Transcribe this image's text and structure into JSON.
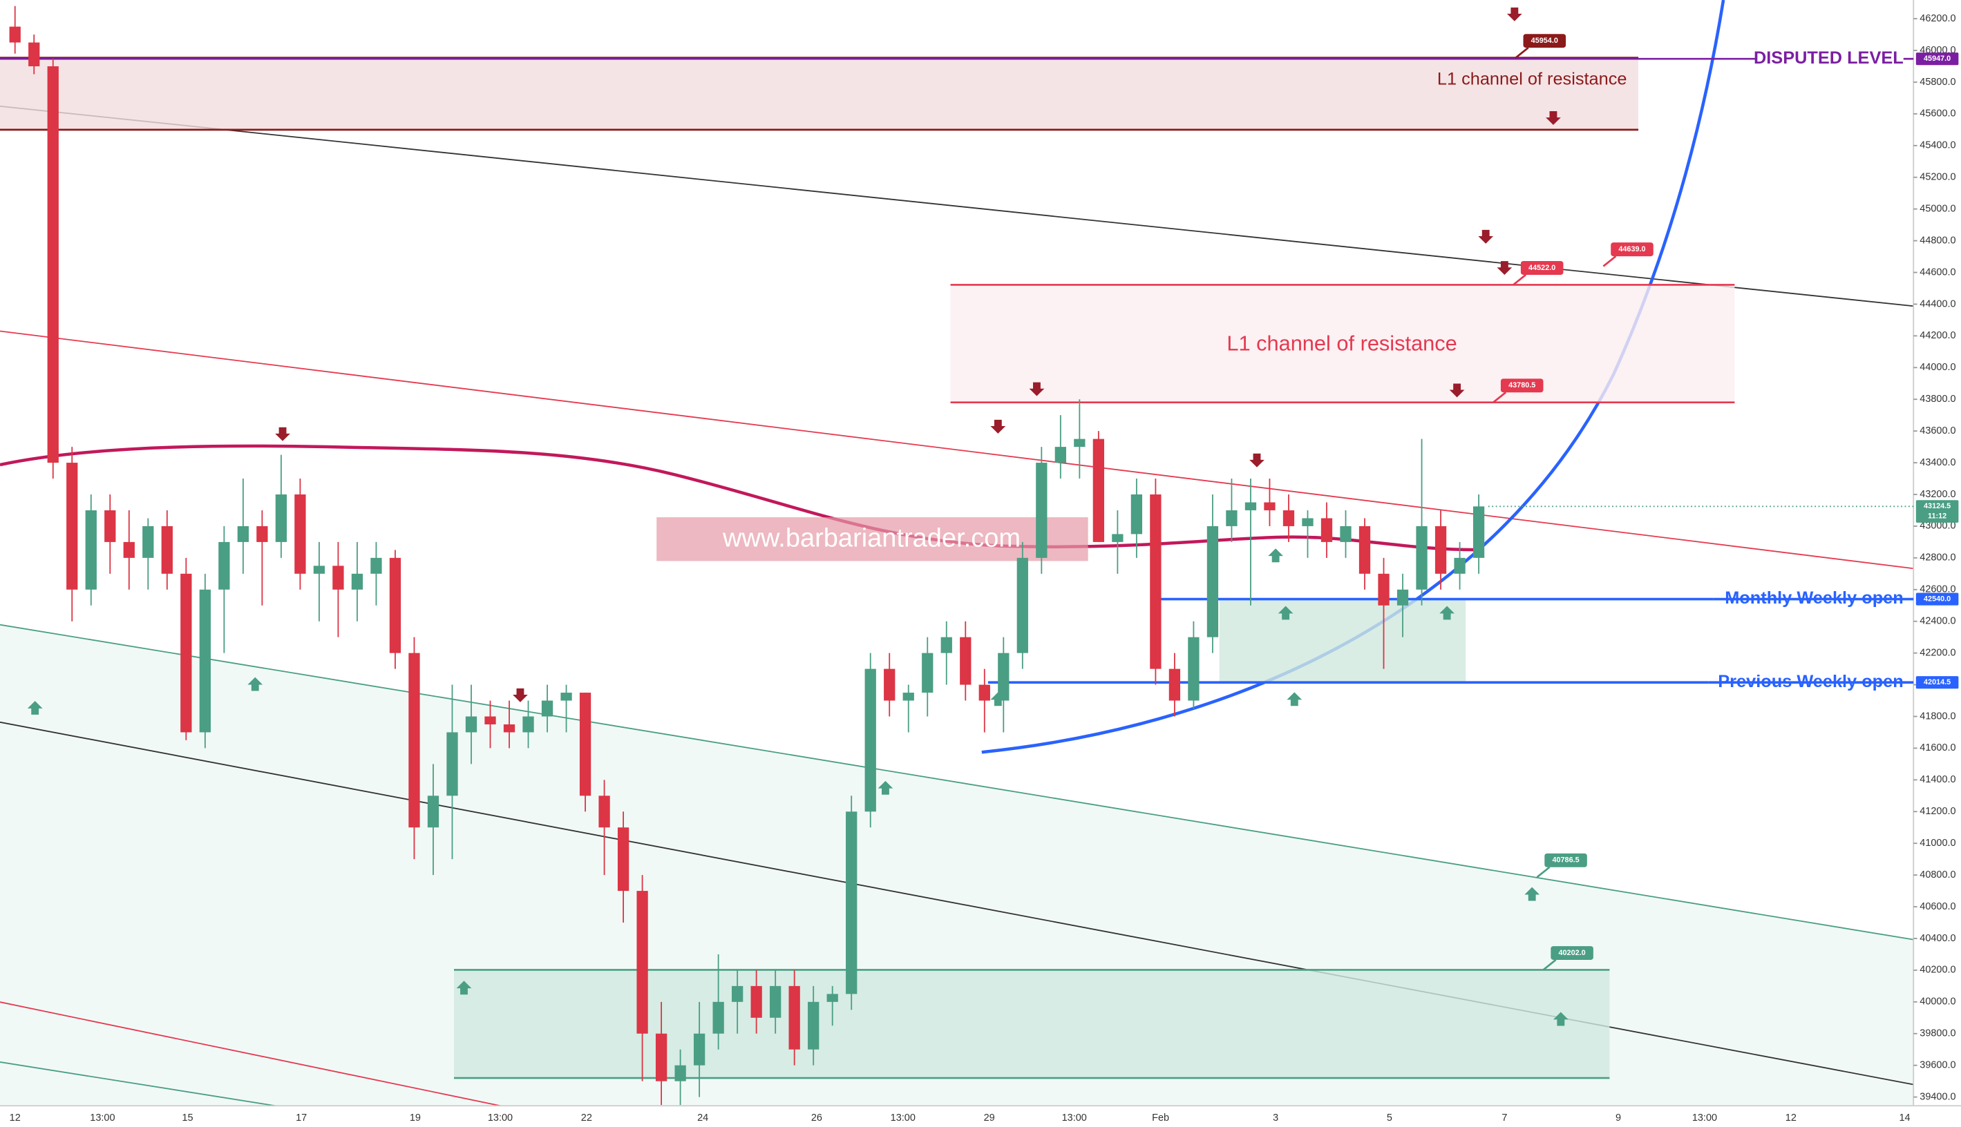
{
  "chart_data": {
    "type": "candlestick",
    "ylim": [
      39345,
      46318
    ],
    "yticks": [
      {
        "value": 39400,
        "label": "39400.0"
      },
      {
        "value": 39600,
        "label": "39600.0"
      },
      {
        "value": 39800,
        "label": "39800.0"
      },
      {
        "value": 40000,
        "label": "40000.0"
      },
      {
        "value": 40200,
        "label": "40200.0"
      },
      {
        "value": 40400,
        "label": "40400.0"
      },
      {
        "value": 40600,
        "label": "40600.0"
      },
      {
        "value": 40800,
        "label": "40800.0"
      },
      {
        "value": 41000,
        "label": "41000.0"
      },
      {
        "value": 41200,
        "label": "41200.0"
      },
      {
        "value": 41400,
        "label": "41400.0"
      },
      {
        "value": 41600,
        "label": "41600.0"
      },
      {
        "value": 41800,
        "label": "41800.0"
      },
      {
        "value": 42000,
        "label": "42000.0"
      },
      {
        "value": 42200,
        "label": "42200.0"
      },
      {
        "value": 42400,
        "label": "42400.0"
      },
      {
        "value": 42600,
        "label": "42600.0"
      },
      {
        "value": 42800,
        "label": "42800.0"
      },
      {
        "value": 43000,
        "label": "43000.0"
      },
      {
        "value": 43200,
        "label": "43200.0"
      },
      {
        "value": 43400,
        "label": "43400.0"
      },
      {
        "value": 43600,
        "label": "43600.0"
      },
      {
        "value": 43800,
        "label": "43800.0"
      },
      {
        "value": 44000,
        "label": "44000.0"
      },
      {
        "value": 44200,
        "label": "44200.0"
      },
      {
        "value": 44400,
        "label": "44400.0"
      },
      {
        "value": 44600,
        "label": "44600.0"
      },
      {
        "value": 44800,
        "label": "44800.0"
      },
      {
        "value": 45000,
        "label": "45000.0"
      },
      {
        "value": 45200,
        "label": "45200.0"
      },
      {
        "value": 45400,
        "label": "45400.0"
      },
      {
        "value": 45600,
        "label": "45600.0"
      },
      {
        "value": 45800,
        "label": "45800.0"
      },
      {
        "value": 46000,
        "label": "46000.0"
      },
      {
        "value": 46200,
        "label": "46200.0"
      }
    ],
    "x_labels": [
      "12",
      "13:00",
      "15",
      "17",
      "19",
      "13:00",
      "22",
      "24",
      "26",
      "13:00",
      "29",
      "13:00",
      "Feb",
      "3",
      "5",
      "7",
      "9",
      "13:00",
      "12",
      "14"
    ],
    "up_color": "#4a9e84",
    "down_color": "#dc3545",
    "candles": [
      [
        46150,
        46280,
        45980,
        46050
      ],
      [
        46050,
        46100,
        45850,
        45900
      ],
      [
        45900,
        45950,
        43300,
        43400
      ],
      [
        43400,
        43500,
        42400,
        42600
      ],
      [
        42600,
        43200,
        42500,
        43100
      ],
      [
        43100,
        43200,
        42700,
        42900
      ],
      [
        42900,
        43100,
        42600,
        42800
      ],
      [
        42800,
        43050,
        42600,
        43000
      ],
      [
        43000,
        43100,
        42600,
        42700
      ],
      [
        42700,
        42800,
        41650,
        41700
      ],
      [
        41700,
        42700,
        41600,
        42600
      ],
      [
        42600,
        43000,
        42200,
        42900
      ],
      [
        42900,
        43300,
        42700,
        43000
      ],
      [
        43000,
        43100,
        42500,
        42900
      ],
      [
        42900,
        43450,
        42800,
        43200
      ],
      [
        43200,
        43300,
        42600,
        42700
      ],
      [
        42700,
        42900,
        42400,
        42750
      ],
      [
        42750,
        42900,
        42300,
        42600
      ],
      [
        42600,
        42900,
        42400,
        42700
      ],
      [
        42700,
        42900,
        42500,
        42800
      ],
      [
        42800,
        42850,
        42100,
        42200
      ],
      [
        42200,
        42300,
        40900,
        41100
      ],
      [
        41100,
        41500,
        40800,
        41300
      ],
      [
        41300,
        42000,
        40900,
        41700
      ],
      [
        41700,
        42000,
        41500,
        41800
      ],
      [
        41800,
        41900,
        41600,
        41750
      ],
      [
        41750,
        41900,
        41600,
        41700
      ],
      [
        41700,
        41900,
        41600,
        41800
      ],
      [
        41800,
        42000,
        41700,
        41900
      ],
      [
        41900,
        42000,
        41700,
        41950
      ],
      [
        41950,
        41950,
        41200,
        41300
      ],
      [
        41300,
        41400,
        40800,
        41100
      ],
      [
        41100,
        41200,
        40500,
        40700
      ],
      [
        40700,
        40800,
        39500,
        39800
      ],
      [
        39800,
        40000,
        39350,
        39500
      ],
      [
        39500,
        39700,
        39350,
        39600
      ],
      [
        39600,
        40000,
        39400,
        39800
      ],
      [
        39800,
        40300,
        39700,
        40000
      ],
      [
        40000,
        40200,
        39800,
        40100
      ],
      [
        40100,
        40200,
        39800,
        39900
      ],
      [
        39900,
        40200,
        39800,
        40100
      ],
      [
        40100,
        40200,
        39600,
        39700
      ],
      [
        39700,
        40100,
        39600,
        40000
      ],
      [
        40000,
        40100,
        39850,
        40050
      ],
      [
        40050,
        41300,
        39950,
        41200
      ],
      [
        41200,
        42200,
        41100,
        42100
      ],
      [
        42100,
        42200,
        41800,
        41900
      ],
      [
        41900,
        42000,
        41700,
        41950
      ],
      [
        41950,
        42300,
        41800,
        42200
      ],
      [
        42200,
        42400,
        42000,
        42300
      ],
      [
        42300,
        42400,
        41900,
        42000
      ],
      [
        42000,
        42100,
        41700,
        41900
      ],
      [
        41900,
        42300,
        41700,
        42200
      ],
      [
        42200,
        42900,
        42100,
        42800
      ],
      [
        42800,
        43500,
        42700,
        43400
      ],
      [
        43400,
        43700,
        43300,
        43500
      ],
      [
        43500,
        43800,
        43300,
        43550
      ],
      [
        43550,
        43600,
        42900,
        42900
      ],
      [
        42900,
        43100,
        42700,
        42950
      ],
      [
        42950,
        43300,
        42800,
        43200
      ],
      [
        43200,
        43300,
        42000,
        42100
      ],
      [
        42100,
        42200,
        41800,
        41900
      ],
      [
        41900,
        42400,
        41850,
        42300
      ],
      [
        42300,
        43200,
        42200,
        43000
      ],
      [
        43000,
        43300,
        42900,
        43100
      ],
      [
        43100,
        43300,
        42500,
        43150
      ],
      [
        43150,
        43300,
        43000,
        43100
      ],
      [
        43100,
        43200,
        42900,
        43000
      ],
      [
        43000,
        43100,
        42800,
        43050
      ],
      [
        43050,
        43150,
        42800,
        42900
      ],
      [
        42900,
        43100,
        42800,
        43000
      ],
      [
        43000,
        43050,
        42600,
        42700
      ],
      [
        42700,
        42800,
        42100,
        42500
      ],
      [
        42500,
        42700,
        42300,
        42600
      ],
      [
        42600,
        43550,
        42500,
        43000
      ],
      [
        43000,
        43100,
        42600,
        42700
      ],
      [
        42700,
        42900,
        42600,
        42800
      ],
      [
        42800,
        43200,
        42700,
        43124.5
      ]
    ],
    "zones": [
      {
        "top": 45954,
        "top_label": "45954.0",
        "bottom": 45500,
        "text": "L1 channel of resistance",
        "color": "#8b1a1a"
      },
      {
        "top": 44522,
        "top_label": "44522.0",
        "bottom": 43780.5,
        "bottom_label": "43780.5",
        "text": "L1 channel of resistance",
        "color": "#e53950"
      },
      {
        "top": 42540,
        "top_label": "42540.0",
        "top_text": "Monthly Weekly open",
        "bottom": 42014.5,
        "bottom_label": "42014.5",
        "bottom_text": "Previous Weekly open",
        "color": "#2962ff"
      },
      {
        "top": 40202,
        "top_label": "40202.0",
        "bottom": 39520,
        "color": "#4a9e84"
      }
    ],
    "disputed_level": {
      "value": 45947,
      "label": "45947.0",
      "text": "DISPUTED LEVEL",
      "color": "#7b1fa2"
    },
    "trend_tags": [
      {
        "value": 44639,
        "label": "44639.0",
        "color": "#e53950"
      },
      {
        "value": 40786.5,
        "label": "40786.5",
        "color": "#4a9e84"
      }
    ],
    "current_price": {
      "value": 43124.5,
      "label": "43124.5",
      "countdown": "11:12",
      "color": "#4a9e84"
    },
    "watermark": "www.barbariantrader.com"
  }
}
